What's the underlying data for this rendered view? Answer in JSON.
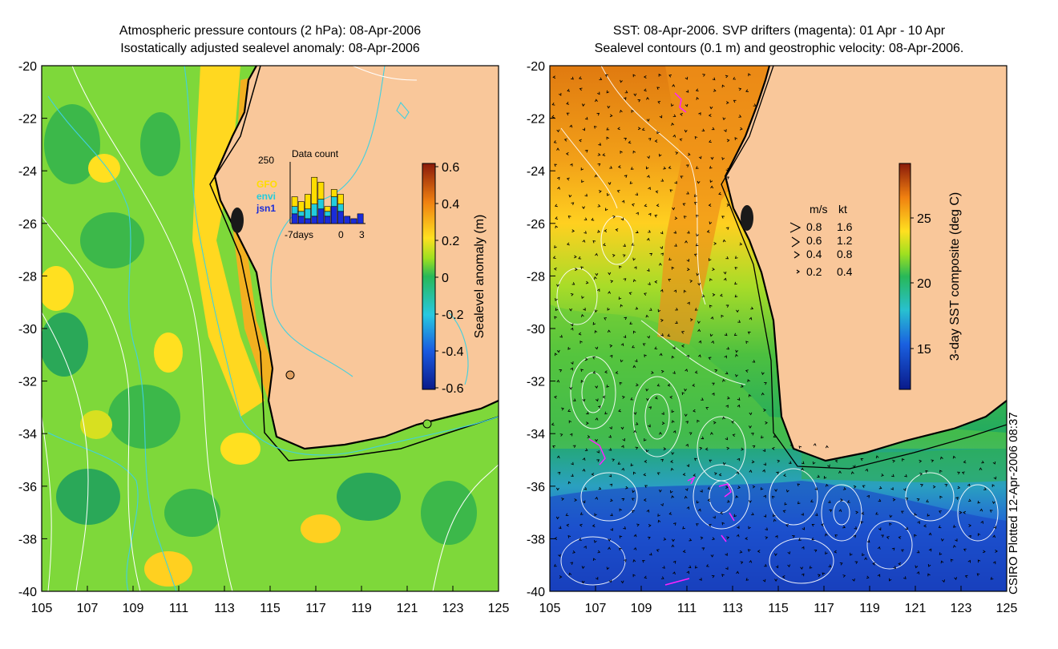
{
  "left_panel": {
    "title_line1": "Atmospheric pressure contours (2 hPa): 08-Apr-2006",
    "title_line2": "Isostatically adjusted sealevel anomaly: 08-Apr-2006",
    "colorbar": {
      "label": "Sealevel anomaly (m)",
      "ticks": [
        "0.6",
        "0.4",
        "0.2",
        "0",
        "-0.2",
        "-0.4",
        "-0.6"
      ]
    },
    "inset": {
      "title": "Data count",
      "y_tick": "250",
      "x_ticks": [
        "-7days",
        "0",
        "3"
      ],
      "legend": [
        {
          "label": "GFO",
          "color": "#ffdd00"
        },
        {
          "label": "envi",
          "color": "#22ccdd"
        },
        {
          "label": "jsn1",
          "color": "#1a2cd8"
        }
      ],
      "bars": [
        {
          "jsn1": 40,
          "envi": 30,
          "gfo": 40
        },
        {
          "jsn1": 30,
          "envi": 20,
          "gfo": 40
        },
        {
          "jsn1": 20,
          "envi": 40,
          "gfo": 60
        },
        {
          "jsn1": 30,
          "envi": 50,
          "gfo": 110
        },
        {
          "jsn1": 60,
          "envi": 40,
          "gfo": 70
        },
        {
          "jsn1": 30,
          "envi": 20,
          "gfo": 20
        },
        {
          "jsn1": 70,
          "envi": 40,
          "gfo": 30
        },
        {
          "jsn1": 50,
          "envi": 30,
          "gfo": 40
        },
        {
          "jsn1": 30,
          "envi": 0,
          "gfo": 0
        },
        {
          "jsn1": 20,
          "envi": 0,
          "gfo": 0
        },
        {
          "jsn1": 40,
          "envi": 0,
          "gfo": 0
        }
      ]
    }
  },
  "right_panel": {
    "title_line1": "SST: 08-Apr-2006. SVP drifters (magenta): 01 Apr - 10 Apr",
    "title_line2": "Sealevel contours (0.1 m) and geostrophic velocity: 08-Apr-2006.",
    "colorbar": {
      "label": "3-day SST composite (deg C)",
      "ticks": [
        "25",
        "20",
        "15"
      ]
    },
    "velocity_legend": {
      "header_ms": "m/s",
      "header_kt": "kt",
      "rows": [
        {
          "ms": "0.8",
          "kt": "1.6"
        },
        {
          "ms": "0.6",
          "kt": "1.2"
        },
        {
          "ms": "0.4",
          "kt": "0.8"
        },
        {
          "ms": "0.2",
          "kt": "0.4"
        }
      ]
    }
  },
  "axes": {
    "lat_ticks": [
      "-20",
      "-22",
      "-24",
      "-26",
      "-28",
      "-30",
      "-32",
      "-34",
      "-36",
      "-38",
      "-40"
    ],
    "lon_ticks": [
      "105",
      "107",
      "109",
      "111",
      "113",
      "115",
      "117",
      "119",
      "121",
      "123",
      "125"
    ]
  },
  "credit": "CSIRO Plotted 12-Apr-2006 08:37",
  "colors": {
    "land": "#f9c79a",
    "ocean_green": "#6fd33c",
    "coast": "#000000",
    "pressure_contour": "#ffffff",
    "sealevel_contour": "#40d0e0",
    "drifter": "#ff22ff"
  }
}
